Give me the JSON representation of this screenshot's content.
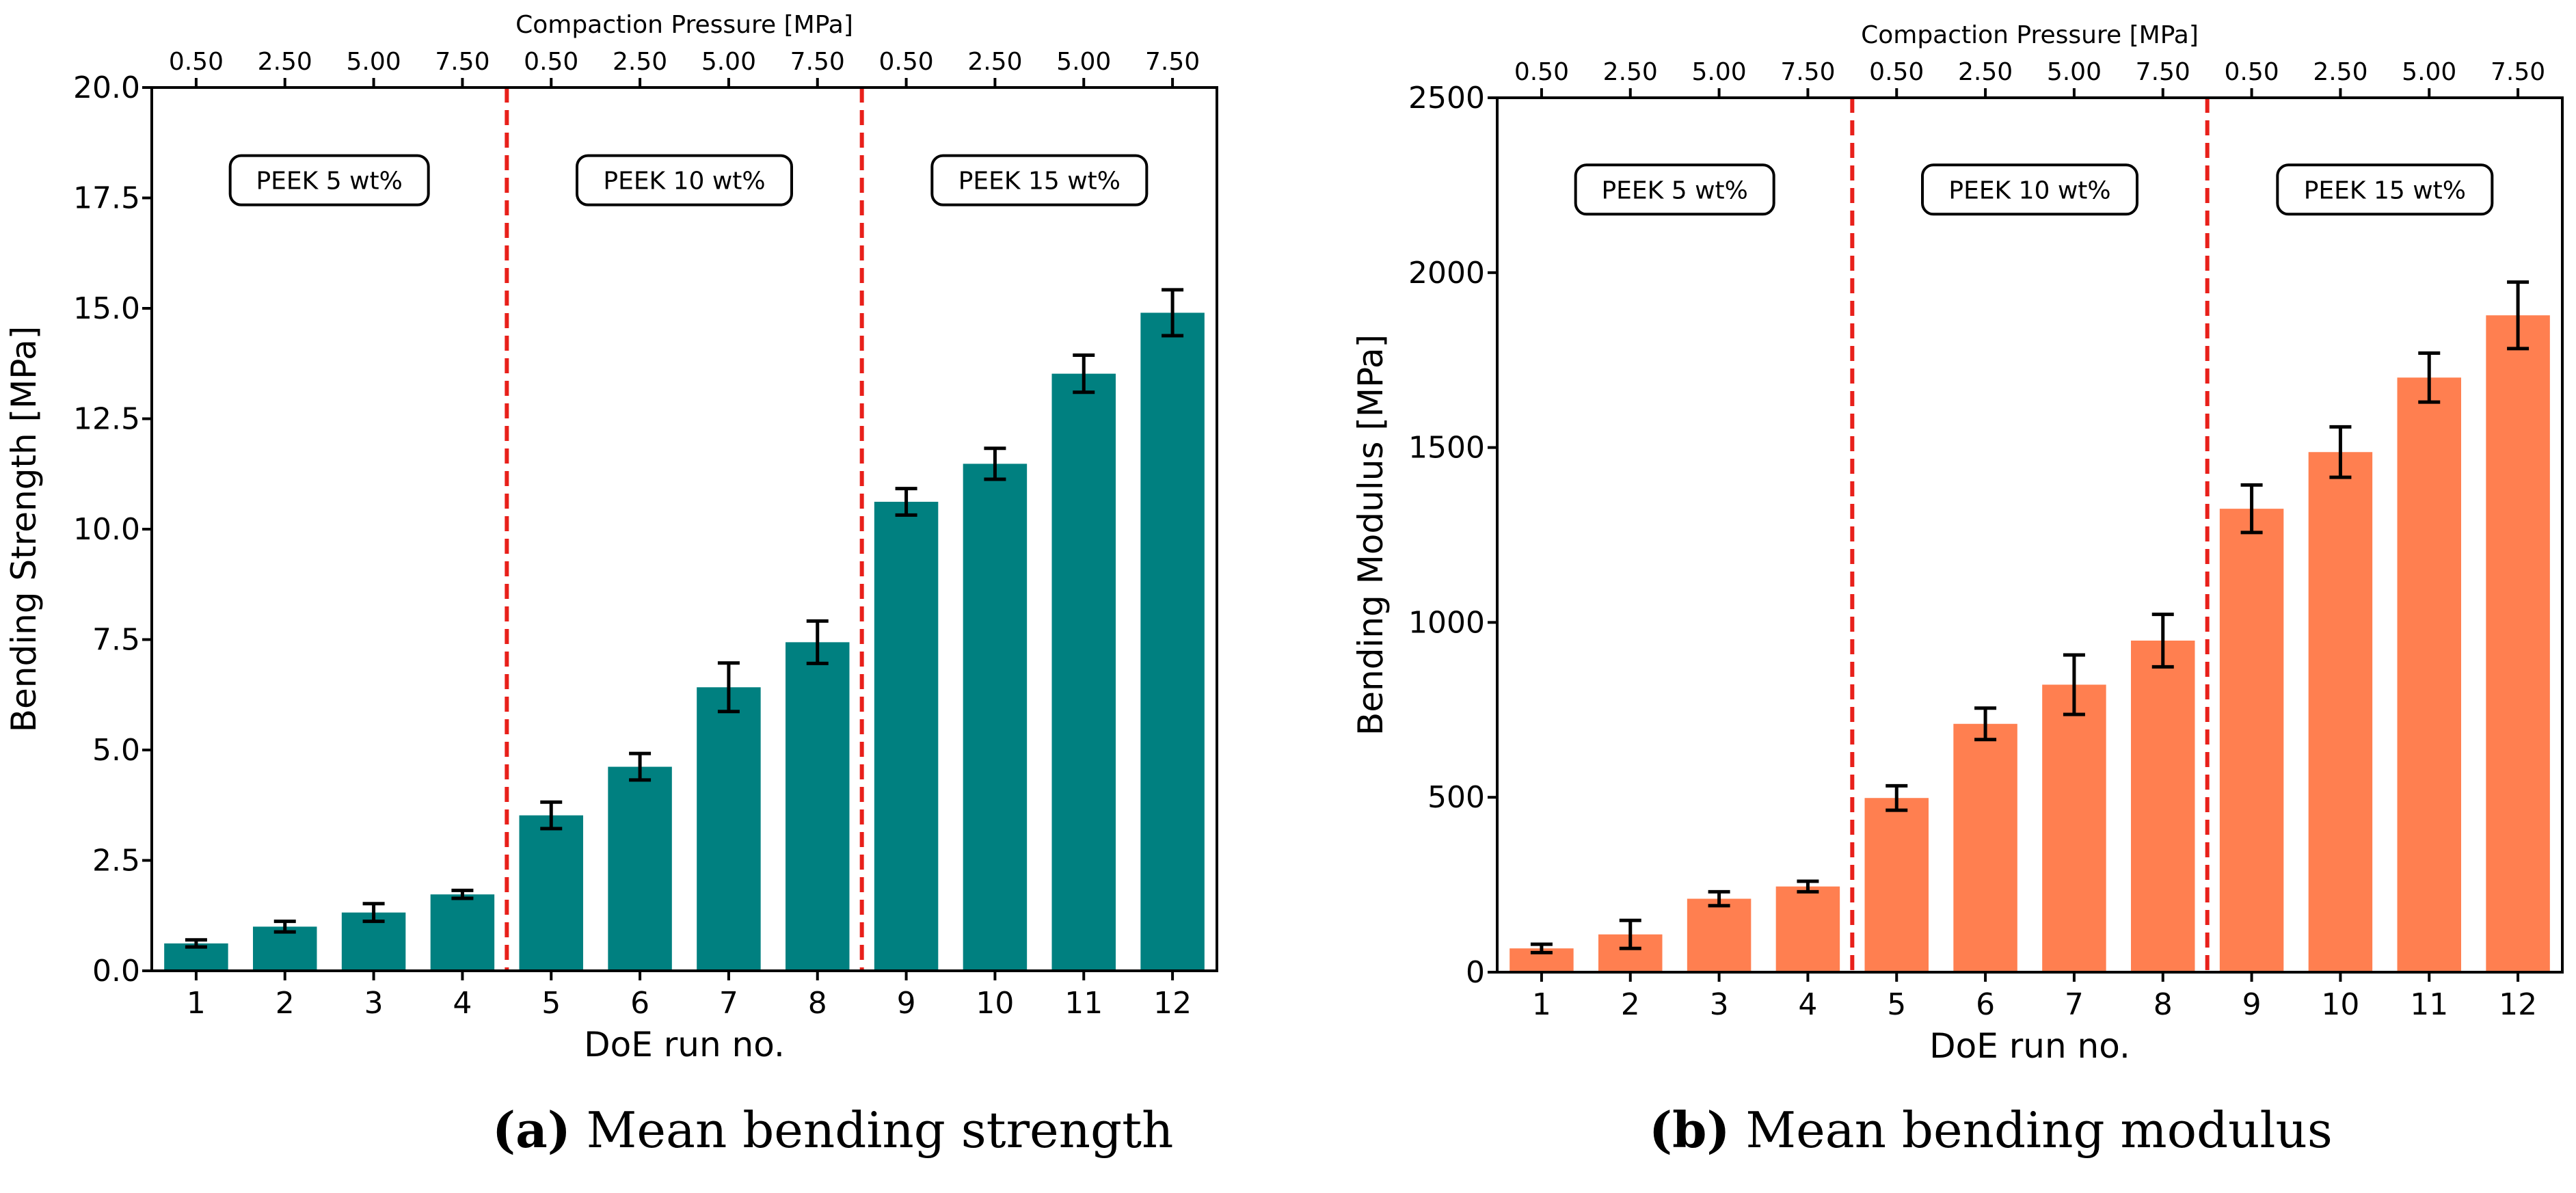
{
  "chart_data": [
    {
      "type": "bar",
      "categories": [
        "1",
        "2",
        "3",
        "4",
        "5",
        "6",
        "7",
        "8",
        "9",
        "10",
        "11",
        "12"
      ],
      "values": [
        0.62,
        1.0,
        1.32,
        1.73,
        3.52,
        4.62,
        6.42,
        7.44,
        10.62,
        11.48,
        13.52,
        14.9
      ],
      "errors": [
        0.08,
        0.12,
        0.2,
        0.09,
        0.3,
        0.3,
        0.55,
        0.48,
        0.3,
        0.35,
        0.42,
        0.52
      ],
      "xlabel": "DoE run no.",
      "ylabel": "Bending Strength [MPa]",
      "ylim": [
        0,
        20
      ],
      "yticks": [
        "0.0",
        "2.5",
        "5.0",
        "7.5",
        "10.0",
        "12.5",
        "15.0",
        "17.5",
        "20.0"
      ],
      "top_axis_label": "Compaction Pressure [MPa]",
      "top_ticks": [
        "0.50",
        "2.50",
        "5.00",
        "7.50",
        "0.50",
        "2.50",
        "5.00",
        "7.50",
        "0.50",
        "2.50",
        "5.00",
        "7.50"
      ],
      "groups": [
        "PEEK 5 wt%",
        "PEEK 10 wt%",
        "PEEK 15 wt%"
      ],
      "color": "#008080",
      "divider_color": "#e8201a",
      "caption_letter": "(a)",
      "caption_text": " Mean bending strength"
    },
    {
      "type": "bar",
      "categories": [
        "1",
        "2",
        "3",
        "4",
        "5",
        "6",
        "7",
        "8",
        "9",
        "10",
        "11",
        "12"
      ],
      "values": [
        68,
        108,
        210,
        245,
        498,
        710,
        822,
        948,
        1325,
        1487,
        1700,
        1878
      ],
      "errors": [
        12,
        40,
        20,
        15,
        35,
        45,
        85,
        75,
        68,
        72,
        70,
        95
      ],
      "xlabel": "DoE run no.",
      "ylabel": "Bending Modulus [MPa]",
      "ylim": [
        0,
        2500
      ],
      "yticks": [
        "0",
        "500",
        "1000",
        "1500",
        "2000",
        "2500"
      ],
      "top_axis_label": "Compaction Pressure [MPa]",
      "top_ticks": [
        "0.50",
        "2.50",
        "5.00",
        "7.50",
        "0.50",
        "2.50",
        "5.00",
        "7.50",
        "0.50",
        "2.50",
        "5.00",
        "7.50"
      ],
      "groups": [
        "PEEK 5 wt%",
        "PEEK 10 wt%",
        "PEEK 15 wt%"
      ],
      "color": "#ff7f50",
      "divider_color": "#e8201a",
      "caption_letter": "(b)",
      "caption_text": " Mean bending modulus"
    }
  ]
}
